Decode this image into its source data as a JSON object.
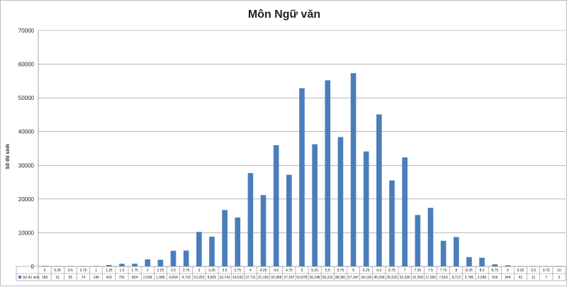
{
  "chart_data": {
    "type": "bar",
    "title": "Môn Ngữ văn",
    "xlabel": "",
    "ylabel": "Số thí sinh",
    "ylim": [
      0,
      70000
    ],
    "yticks": [
      0,
      10000,
      20000,
      30000,
      40000,
      50000,
      60000,
      70000
    ],
    "grid": true,
    "legend": "data-table-left",
    "color": "#4a7ebb",
    "categories": [
      "0",
      "0.25",
      "0.5",
      "0.75",
      "1",
      "1.25",
      "1.5",
      "1.75",
      "2",
      "2.25",
      "2.5",
      "2.75",
      "3",
      "3.25",
      "3.5",
      "3.75",
      "4",
      "4.25",
      "4.5",
      "4.75",
      "5",
      "5.25",
      "5.5",
      "5.75",
      "6",
      "6.25",
      "6.5",
      "6.75",
      "7",
      "7.25",
      "7.5",
      "7.75",
      "8",
      "8.25",
      "8.5",
      "8.75",
      "9",
      "9.25",
      "9.5",
      "9.75",
      "10"
    ],
    "series": [
      {
        "name": "Số thí sinh",
        "values": [
          186,
          31,
          55,
          74,
          146,
          416,
          791,
          804,
          2098,
          1986,
          4654,
          4716,
          10251,
          8825,
          16741,
          14533,
          27711,
          21169,
          35968,
          27187,
          52878,
          36248,
          55221,
          38381,
          57347,
          34118,
          45096,
          25525,
          32339,
          15259,
          17382,
          7616,
          8713,
          2785,
          2586,
          639,
          344,
          41,
          11,
          7,
          0
        ],
        "labels": [
          "186",
          "31",
          "55",
          "74",
          "146",
          "416",
          "791",
          "804",
          "2,098",
          "1,986",
          "4,654",
          "4,716",
          "10,251",
          "8,825",
          "16,741",
          "14,533",
          "27,711",
          "21,169",
          "35,968",
          "27,187",
          "52,878",
          "36,248",
          "55,221",
          "38,381",
          "57,347",
          "34,118",
          "45,096",
          "25,525",
          "32,339",
          "15,259",
          "17,382",
          "7,616",
          "8,713",
          "2,785",
          "2,586",
          "639",
          "344",
          "41",
          "11",
          "7",
          "0"
        ]
      }
    ]
  }
}
